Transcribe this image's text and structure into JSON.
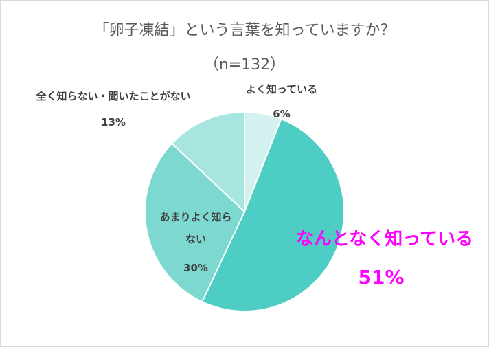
{
  "chart_data": {
    "type": "pie",
    "title": "「卵子凍結」という言葉を知っていますか？",
    "subtitle": "（n=132）",
    "categories": [
      "よく知っている",
      "なんとなく知っている",
      "あまりよく知らない",
      "全く知らない・聞いたことがない"
    ],
    "values": [
      6,
      51,
      30,
      13
    ],
    "value_labels": [
      "6%",
      "51%",
      "30%",
      "13%"
    ],
    "colors": [
      "#d3f1ee",
      "#4ecdc4",
      "#7dd9d0",
      "#a7e6e0"
    ],
    "label_colors": [
      "#404040",
      "#ff00ff",
      "#404040",
      "#404040"
    ]
  }
}
